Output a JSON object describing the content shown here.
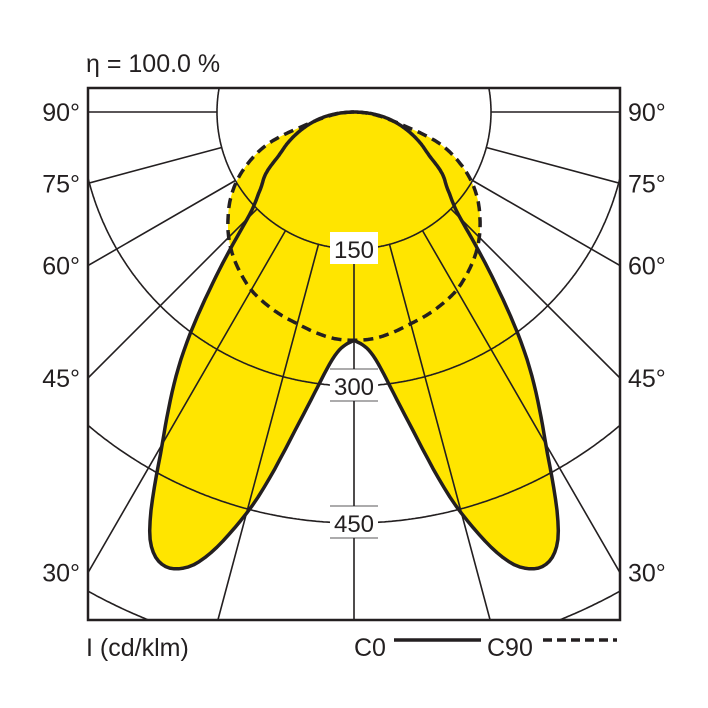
{
  "chart_data": {
    "type": "polar",
    "title": "η = 100.0 %",
    "unit_label": "I (cd/klm)",
    "radial_ticks": [
      150,
      300,
      450,
      600
    ],
    "radial_tick_labels": [
      "150",
      "300",
      "450"
    ],
    "angle_ticks": [
      0,
      15,
      30,
      45,
      60,
      75,
      90
    ],
    "angle_tick_labels": [
      "90°",
      "75°",
      "60°",
      "45°",
      "30°"
    ],
    "angle_tick_values": [
      90,
      75,
      60,
      45,
      30
    ],
    "fill_color": "#ffe500",
    "line_color": "#231f20",
    "angles": [
      0,
      5,
      10,
      15,
      20,
      25,
      30,
      35,
      40,
      45,
      50,
      55,
      60,
      65,
      70,
      75,
      80,
      85,
      90
    ],
    "series": [
      {
        "name": "C0",
        "style": "solid",
        "values": [
          250,
          272,
          345,
          455,
          530,
          525,
          420,
          330,
          235,
          165,
          135,
          118,
          95,
          80,
          65,
          50,
          35,
          18,
          0
        ]
      },
      {
        "name": "C90",
        "style": "dashed",
        "values": [
          250,
          249,
          245,
          240,
          236,
          231,
          225,
          216,
          206,
          194,
          180,
          165,
          147,
          125,
          98,
          55,
          32,
          15,
          0
        ]
      }
    ]
  }
}
